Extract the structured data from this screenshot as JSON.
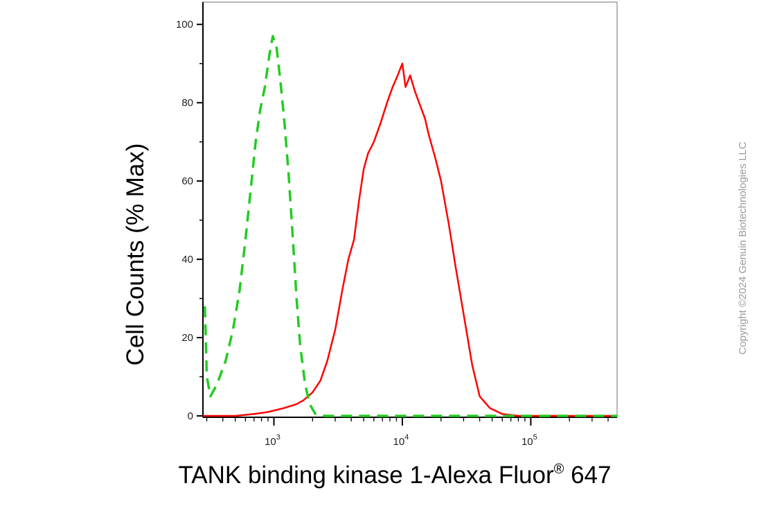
{
  "chart_data": {
    "type": "line",
    "title": "",
    "xlabel": "TANK binding kinase 1-Alexa Fluor",
    "xlabel_superscript": "®",
    "xlabel_suffix": " 647",
    "ylabel": "Cell Counts (% Max)",
    "x_scale": "log",
    "xlim": [
      280,
      470000
    ],
    "ylim": [
      0,
      105
    ],
    "y_ticks": [
      0,
      20,
      40,
      60,
      80,
      100
    ],
    "x_major_ticks": [
      {
        "value": 1000,
        "base": "10",
        "exp": "3"
      },
      {
        "value": 10000,
        "base": "10",
        "exp": "4"
      },
      {
        "value": 100000,
        "base": "10",
        "exp": "5"
      }
    ],
    "legend": "none",
    "grid": false,
    "series": [
      {
        "color": "#ff0000",
        "style": "solid",
        "points": [
          [
            280,
            0
          ],
          [
            500,
            0
          ],
          [
            700,
            0.5
          ],
          [
            900,
            1
          ],
          [
            1200,
            2
          ],
          [
            1500,
            3
          ],
          [
            1700,
            4
          ],
          [
            2000,
            6
          ],
          [
            2300,
            9
          ],
          [
            2600,
            14
          ],
          [
            3000,
            22
          ],
          [
            3400,
            32
          ],
          [
            3800,
            40
          ],
          [
            4200,
            45
          ],
          [
            4600,
            55
          ],
          [
            5000,
            63
          ],
          [
            5400,
            67
          ],
          [
            6000,
            70
          ],
          [
            6800,
            75
          ],
          [
            7600,
            80
          ],
          [
            8400,
            84
          ],
          [
            9200,
            87
          ],
          [
            10000,
            90
          ],
          [
            10600,
            84
          ],
          [
            11500,
            87
          ],
          [
            12500,
            83
          ],
          [
            13500,
            80
          ],
          [
            15000,
            76
          ],
          [
            16000,
            72
          ],
          [
            18000,
            66
          ],
          [
            20000,
            60
          ],
          [
            23000,
            49
          ],
          [
            26000,
            38
          ],
          [
            30000,
            26
          ],
          [
            35000,
            13
          ],
          [
            40000,
            5
          ],
          [
            48000,
            2
          ],
          [
            60000,
            0.5
          ],
          [
            80000,
            0
          ],
          [
            470000,
            0
          ]
        ]
      },
      {
        "color": "#22cc22",
        "style": "dashed",
        "points": [
          [
            290,
            28
          ],
          [
            300,
            10
          ],
          [
            320,
            5
          ],
          [
            360,
            8
          ],
          [
            420,
            14
          ],
          [
            480,
            22
          ],
          [
            540,
            32
          ],
          [
            600,
            45
          ],
          [
            660,
            58
          ],
          [
            720,
            70
          ],
          [
            780,
            78
          ],
          [
            850,
            84
          ],
          [
            920,
            92
          ],
          [
            980,
            97
          ],
          [
            1050,
            94
          ],
          [
            1120,
            86
          ],
          [
            1200,
            76
          ],
          [
            1300,
            62
          ],
          [
            1400,
            46
          ],
          [
            1500,
            30
          ],
          [
            1600,
            18
          ],
          [
            1750,
            8
          ],
          [
            1900,
            3
          ],
          [
            2100,
            0.5
          ],
          [
            2500,
            0
          ],
          [
            470000,
            0
          ]
        ]
      }
    ]
  },
  "copyright": "Copyright ©2024 Genuin Biotechnologies LLC"
}
